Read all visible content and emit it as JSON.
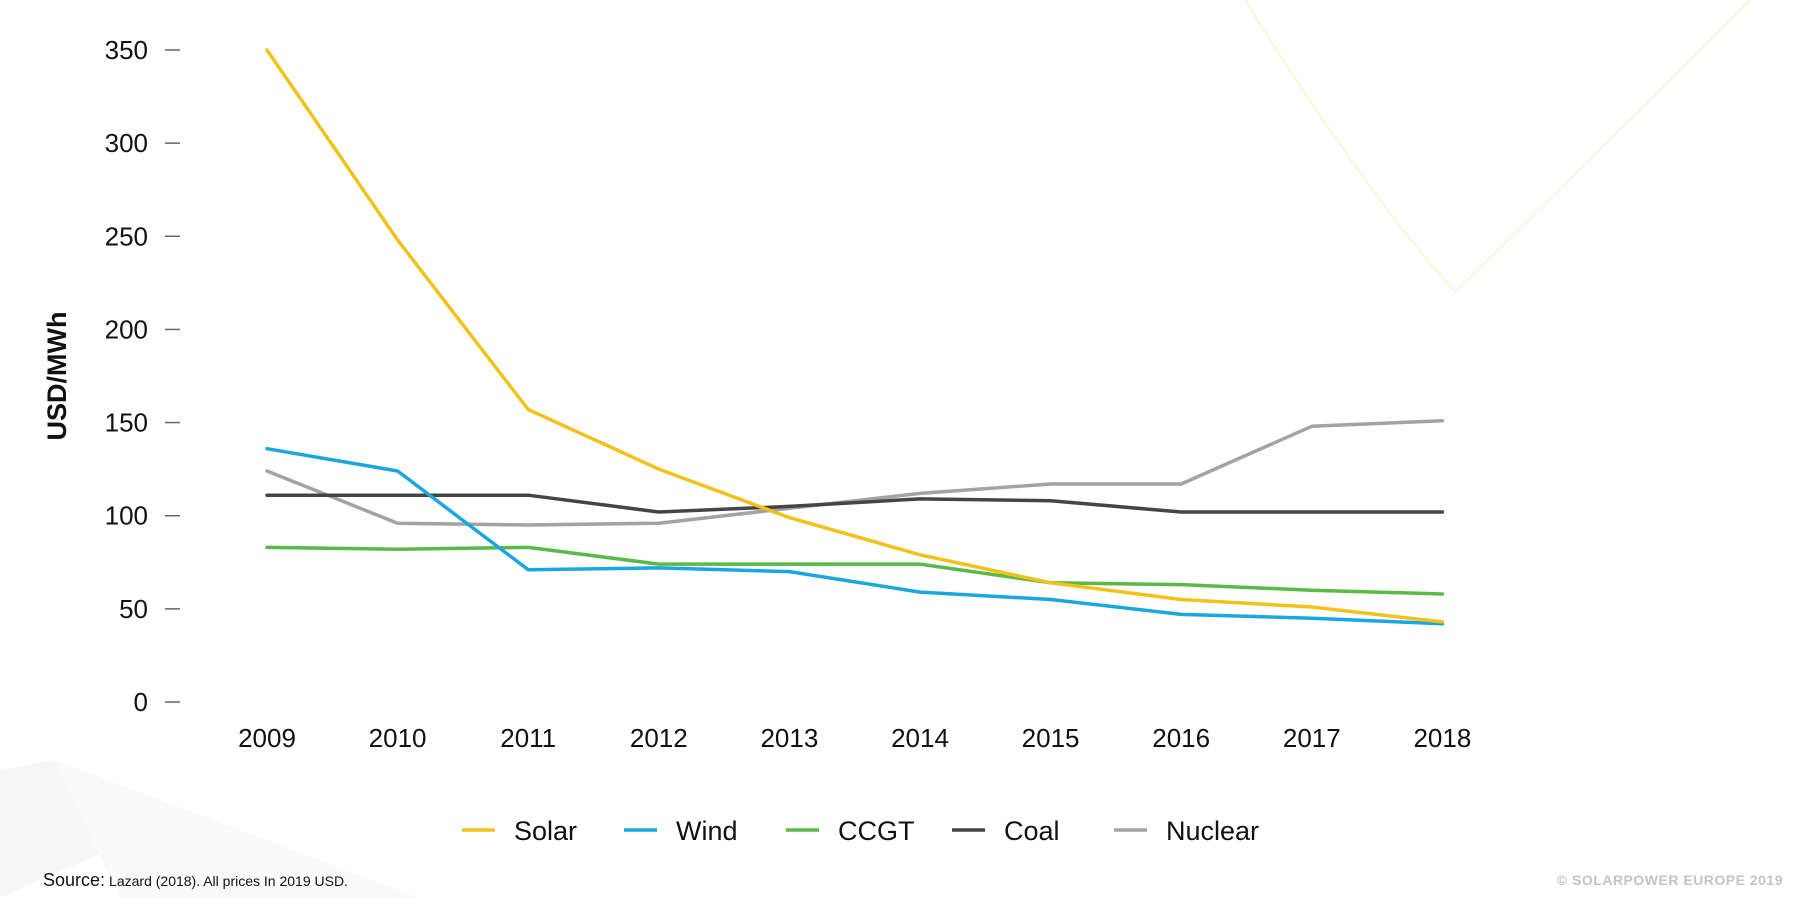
{
  "chart_data": {
    "type": "line",
    "title": "",
    "xlabel": "",
    "ylabel": "USD/MWh",
    "ylim": [
      0,
      350
    ],
    "yticks": [
      0,
      50,
      100,
      150,
      200,
      250,
      300,
      350
    ],
    "grid": false,
    "legend_position": "bottom-center",
    "categories": [
      "2009",
      "2010",
      "2011",
      "2012",
      "2013",
      "2014",
      "2015",
      "2016",
      "2017",
      "2018"
    ],
    "series": [
      {
        "name": "Solar",
        "color": "#f2c21b",
        "values": [
          350,
          248,
          157,
          125,
          99,
          79,
          64,
          55,
          51,
          43
        ]
      },
      {
        "name": "Wind",
        "color": "#1aa7e0",
        "values": [
          136,
          124,
          71,
          72,
          70,
          59,
          55,
          47,
          45,
          42
        ]
      },
      {
        "name": "CCGT",
        "color": "#5ab947",
        "values": [
          83,
          82,
          83,
          74,
          74,
          74,
          64,
          63,
          60,
          58
        ]
      },
      {
        "name": "Coal",
        "color": "#454545",
        "values": [
          111,
          111,
          111,
          102,
          105,
          109,
          108,
          102,
          102,
          102
        ]
      },
      {
        "name": "Nuclear",
        "color": "#a3a3a3",
        "values": [
          124,
          96,
          95,
          96,
          104,
          112,
          117,
          117,
          148,
          151
        ]
      }
    ]
  },
  "footer": {
    "source_label": "Source:",
    "source_text": "Lazard (2018). All prices In 2019 USD.",
    "copyright": "© SOLARPOWER EUROPE 2019"
  }
}
